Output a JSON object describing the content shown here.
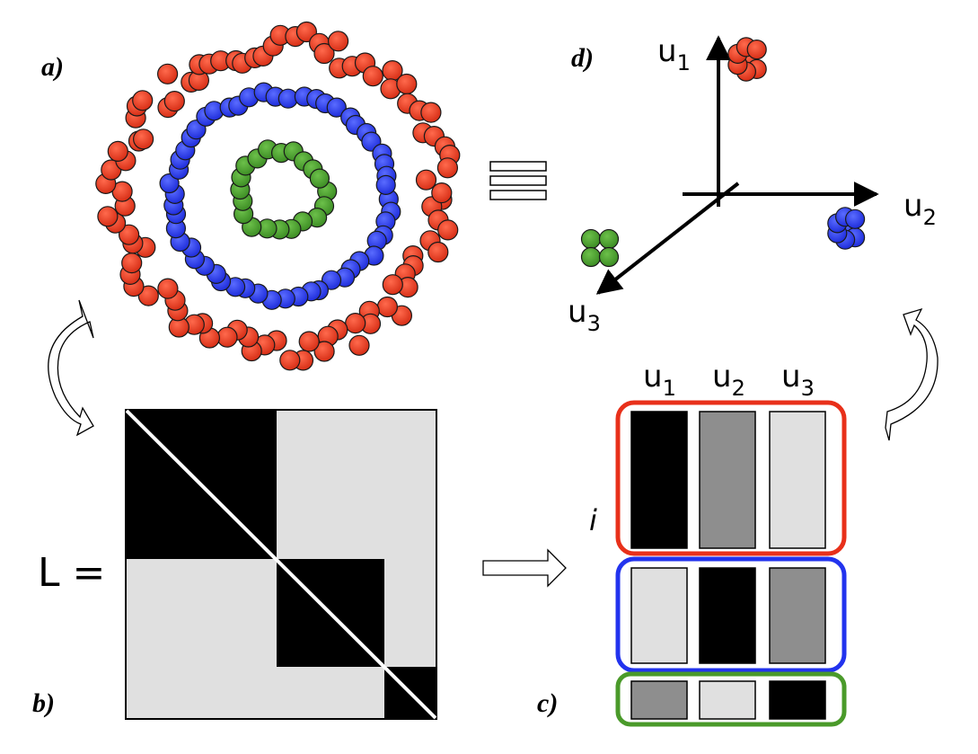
{
  "labels": {
    "panel_a": "a)",
    "panel_b": "b)",
    "panel_c": "c)",
    "panel_d": "d)",
    "matrix": "L =",
    "row_index": "i"
  },
  "axes": [
    {
      "base": "u",
      "sub": "1"
    },
    {
      "base": "u",
      "sub": "2"
    },
    {
      "base": "u",
      "sub": "3"
    }
  ],
  "colors": {
    "red": "#e8301a",
    "blue": "#2233ee",
    "green": "#4a9a2a",
    "black": "#000000",
    "mid_gray": "#8e8e8e",
    "light_gray": "#e0e0e0"
  },
  "clusters": [
    {
      "name": "red",
      "points": 92
    },
    {
      "name": "blue",
      "points": 54
    },
    {
      "name": "green",
      "points": 20
    }
  ],
  "eigenvector_matrix": [
    [
      "black",
      "mid_gray",
      "light_gray"
    ],
    [
      "light_gray",
      "black",
      "mid_gray"
    ],
    [
      "mid_gray",
      "light_gray",
      "black"
    ]
  ]
}
